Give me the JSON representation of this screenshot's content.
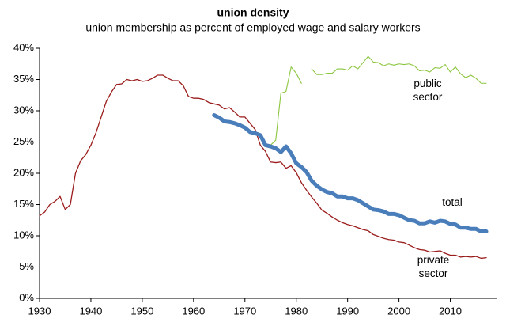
{
  "chart_data": {
    "type": "line",
    "title": "union density",
    "subtitle": "union membership as percent of employed wage and salary workers",
    "x": [
      1930,
      1931,
      1932,
      1933,
      1934,
      1935,
      1936,
      1937,
      1938,
      1939,
      1940,
      1941,
      1942,
      1943,
      1944,
      1945,
      1946,
      1947,
      1948,
      1949,
      1950,
      1951,
      1952,
      1953,
      1954,
      1955,
      1956,
      1957,
      1958,
      1959,
      1960,
      1961,
      1962,
      1963,
      1964,
      1965,
      1966,
      1967,
      1968,
      1969,
      1970,
      1971,
      1972,
      1973,
      1974,
      1975,
      1976,
      1977,
      1978,
      1979,
      1980,
      1981,
      1982,
      1983,
      1984,
      1985,
      1986,
      1987,
      1988,
      1989,
      1990,
      1991,
      1992,
      1993,
      1994,
      1995,
      1996,
      1997,
      1998,
      1999,
      2000,
      2001,
      2002,
      2003,
      2004,
      2005,
      2006,
      2007,
      2008,
      2009,
      2010,
      2011,
      2012,
      2013,
      2014,
      2015,
      2016,
      2017
    ],
    "series": [
      {
        "name": "private sector",
        "color": "#9b1c1c",
        "width": 1.3,
        "values": [
          13.2,
          13.8,
          15.0,
          15.5,
          16.3,
          14.2,
          15.0,
          20.0,
          22.0,
          23.0,
          24.5,
          26.5,
          29.0,
          31.5,
          33.0,
          34.2,
          34.3,
          35.0,
          34.8,
          35.0,
          34.7,
          34.8,
          35.2,
          35.7,
          35.7,
          35.2,
          34.8,
          34.8,
          34.0,
          32.3,
          32.0,
          32.0,
          31.8,
          31.3,
          31.1,
          30.9,
          30.3,
          30.5,
          29.8,
          29.0,
          29.0,
          28.0,
          27.0,
          24.5,
          23.5,
          21.8,
          21.7,
          21.8,
          20.8,
          21.2,
          20.1,
          18.5,
          17.3,
          16.2,
          15.2,
          14.1,
          13.6,
          13.0,
          12.5,
          12.1,
          11.8,
          11.6,
          11.3,
          11.0,
          10.8,
          10.2,
          9.9,
          9.6,
          9.4,
          9.3,
          9.0,
          8.9,
          8.5,
          8.1,
          7.8,
          7.7,
          7.4,
          7.5,
          7.6,
          7.2,
          6.9,
          6.9,
          6.6,
          6.7,
          6.6,
          6.7,
          6.4,
          6.5
        ]
      },
      {
        "name": "public sector",
        "color": "#8cc63f",
        "width": 1.1,
        "values": [
          null,
          null,
          null,
          null,
          null,
          null,
          null,
          null,
          null,
          null,
          null,
          null,
          null,
          null,
          null,
          null,
          null,
          null,
          null,
          null,
          null,
          null,
          null,
          null,
          null,
          null,
          null,
          null,
          null,
          null,
          null,
          null,
          null,
          null,
          null,
          null,
          null,
          null,
          null,
          null,
          null,
          null,
          null,
          null,
          null,
          24.5,
          25.3,
          32.8,
          33.1,
          37.0,
          36.0,
          34.4,
          null,
          36.7,
          35.8,
          35.8,
          36.0,
          36.0,
          36.7,
          36.7,
          36.5,
          37.2,
          36.7,
          37.7,
          38.7,
          37.8,
          37.7,
          37.2,
          37.5,
          37.3,
          37.5,
          37.4,
          37.5,
          37.2,
          36.4,
          36.5,
          36.2,
          36.9,
          36.8,
          37.4,
          36.2,
          37.0,
          35.9,
          35.3,
          35.7,
          35.2,
          34.4,
          34.4
        ]
      },
      {
        "name": "total",
        "color": "#4a7ebb",
        "width": 5,
        "values": [
          null,
          null,
          null,
          null,
          null,
          null,
          null,
          null,
          null,
          null,
          null,
          null,
          null,
          null,
          null,
          null,
          null,
          null,
          null,
          null,
          null,
          null,
          null,
          null,
          null,
          null,
          null,
          null,
          null,
          null,
          null,
          null,
          null,
          null,
          29.3,
          28.9,
          28.3,
          28.2,
          28.0,
          27.7,
          27.3,
          26.6,
          26.4,
          26.1,
          24.5,
          24.3,
          24.0,
          23.4,
          24.3,
          23.2,
          21.6,
          21.0,
          20.2,
          18.8,
          18.0,
          17.4,
          17.0,
          16.8,
          16.3,
          16.3,
          16.0,
          16.0,
          15.7,
          15.2,
          14.7,
          14.2,
          14.1,
          13.9,
          13.5,
          13.5,
          13.3,
          12.9,
          12.5,
          12.4,
          12.0,
          12.0,
          12.3,
          12.1,
          12.4,
          12.3,
          11.9,
          11.8,
          11.3,
          11.3,
          11.1,
          11.1,
          10.7,
          10.7
        ]
      }
    ],
    "xlim": [
      1930,
      2019
    ],
    "xticks": [
      1930,
      1940,
      1950,
      1960,
      1970,
      1980,
      1990,
      2000,
      2010
    ],
    "ylim": [
      0,
      40
    ],
    "yticks": [
      {
        "value": 0,
        "label": "0%"
      },
      {
        "value": 5,
        "label": "5%"
      },
      {
        "value": 10,
        "label": "10%"
      },
      {
        "value": 15,
        "label": "15%"
      },
      {
        "value": 20,
        "label": "20%"
      },
      {
        "value": 25,
        "label": "25%"
      },
      {
        "value": 30,
        "label": "30%"
      },
      {
        "value": 35,
        "label": "35%"
      },
      {
        "value": 40,
        "label": "40%"
      }
    ],
    "grid": false
  }
}
